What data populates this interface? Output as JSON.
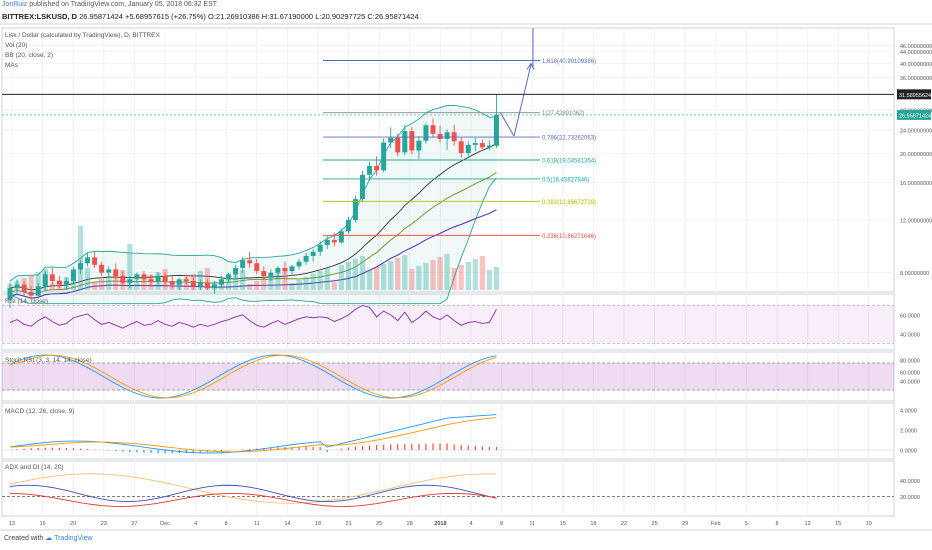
{
  "header": {
    "author": "JonRuiz",
    "published": "published on TradingView.com, January 05, 2018 06:32 EST",
    "symbol": "BITTREX:LSKUSD, D",
    "price": "26.95871424",
    "change": "+5.68957615 (+26.75%)",
    "o": "O:21.26910386",
    "h": "H:31.67190000",
    "l": "L:20.90297725",
    "c": "C:26.95871424"
  },
  "legend": {
    "title": "Lisk / Dollar (calculated by TradingView), D, BITTREX",
    "vol": "Vol (20)",
    "bb": "BB (20, close, 2)",
    "mas": "MAs",
    "rsi": "RSI (14, close)",
    "stoch": "Stoch RSI (3, 3, 14, 14, close)",
    "macd": "MACD (12, 26, close, 9)",
    "adx": "ADX and DI (14, 20)"
  },
  "footer": {
    "created": "Created with",
    "brand": "TradingView"
  },
  "colors": {
    "up": "#26a69a",
    "down": "#ef5350",
    "bb": "#26a69a",
    "fib_blue": "#5b6bc0",
    "rsi": "#8e24aa",
    "macd": "#2196f3",
    "signal": "#ff9800"
  },
  "chart_data": {
    "type": "candlestick",
    "main": {
      "price_axis_labels": [
        "46.00000000",
        "44.00000000",
        "40.00000000",
        "36.00000000",
        "28.00000000",
        "24.00000000",
        "20.00000000",
        "16.00000000",
        "12.00000000",
        "8.00000000"
      ],
      "price_axis_values": [
        46,
        44,
        40,
        36,
        28,
        24,
        20,
        16,
        12,
        8
      ],
      "scale": "log",
      "current_price_label": "26.95871424",
      "marked_price_label": "31.58955624",
      "marked_price": 31.59,
      "fib_levels": [
        {
          "label": "1.618(40.99109386)",
          "value": 40.99,
          "color": "#5b6bc0"
        },
        {
          "label": "1(27.42891062)",
          "value": 27.43,
          "color": "#888888"
        },
        {
          "label": "0.786(22.73262063)",
          "value": 22.73,
          "color": "#5b6bc0"
        },
        {
          "label": "0.618(19.04581354)",
          "value": 19.05,
          "color": "#26a69a"
        },
        {
          "label": "0.5(16.45627846)",
          "value": 16.46,
          "color": "#26a69a"
        },
        {
          "label": "0.382(13.85672739)",
          "value": 13.86,
          "color": "#b8b800"
        },
        {
          "label": "0.236(10.66271646)",
          "value": 10.66,
          "color": "#ef5350"
        }
      ],
      "candles": [
        {
          "o": 6.5,
          "h": 7.4,
          "l": 6.1,
          "c": 7.1
        },
        {
          "o": 7.1,
          "h": 7.6,
          "l": 6.8,
          "c": 7.3
        },
        {
          "o": 7.3,
          "h": 7.5,
          "l": 6.7,
          "c": 6.9
        },
        {
          "o": 6.9,
          "h": 7.2,
          "l": 6.5,
          "c": 6.7
        },
        {
          "o": 6.7,
          "h": 7.4,
          "l": 6.6,
          "c": 7.2
        },
        {
          "o": 7.2,
          "h": 8.1,
          "l": 7.0,
          "c": 7.9
        },
        {
          "o": 7.9,
          "h": 8.3,
          "l": 7.3,
          "c": 7.5
        },
        {
          "o": 7.5,
          "h": 7.8,
          "l": 7.1,
          "c": 7.3
        },
        {
          "o": 7.3,
          "h": 7.7,
          "l": 7.0,
          "c": 7.5
        },
        {
          "o": 7.5,
          "h": 8.4,
          "l": 7.4,
          "c": 8.2
        },
        {
          "o": 8.2,
          "h": 8.8,
          "l": 7.9,
          "c": 8.6
        },
        {
          "o": 8.6,
          "h": 9.3,
          "l": 8.4,
          "c": 9.0
        },
        {
          "o": 9.0,
          "h": 9.4,
          "l": 8.3,
          "c": 8.5
        },
        {
          "o": 8.5,
          "h": 8.7,
          "l": 7.8,
          "c": 8.0
        },
        {
          "o": 8.0,
          "h": 8.4,
          "l": 7.7,
          "c": 8.2
        },
        {
          "o": 8.2,
          "h": 8.6,
          "l": 7.6,
          "c": 7.8
        },
        {
          "o": 7.8,
          "h": 8.1,
          "l": 7.2,
          "c": 7.4
        },
        {
          "o": 7.4,
          "h": 7.8,
          "l": 7.1,
          "c": 7.6
        },
        {
          "o": 7.6,
          "h": 8.0,
          "l": 7.4,
          "c": 7.9
        },
        {
          "o": 7.9,
          "h": 8.1,
          "l": 7.4,
          "c": 7.6
        },
        {
          "o": 7.6,
          "h": 7.9,
          "l": 7.2,
          "c": 7.5
        },
        {
          "o": 7.5,
          "h": 8.0,
          "l": 7.3,
          "c": 7.8
        },
        {
          "o": 7.8,
          "h": 8.0,
          "l": 7.3,
          "c": 7.5
        },
        {
          "o": 7.5,
          "h": 7.8,
          "l": 7.1,
          "c": 7.3
        },
        {
          "o": 7.3,
          "h": 7.7,
          "l": 7.0,
          "c": 7.6
        },
        {
          "o": 7.6,
          "h": 7.9,
          "l": 7.3,
          "c": 7.5
        },
        {
          "o": 7.5,
          "h": 7.7,
          "l": 7.0,
          "c": 7.2
        },
        {
          "o": 7.2,
          "h": 7.6,
          "l": 7.0,
          "c": 7.4
        },
        {
          "o": 7.4,
          "h": 7.6,
          "l": 7.0,
          "c": 7.1
        },
        {
          "o": 7.1,
          "h": 7.5,
          "l": 6.8,
          "c": 7.3
        },
        {
          "o": 7.3,
          "h": 7.8,
          "l": 7.1,
          "c": 7.6
        },
        {
          "o": 7.6,
          "h": 8.0,
          "l": 7.4,
          "c": 7.9
        },
        {
          "o": 7.9,
          "h": 8.5,
          "l": 7.7,
          "c": 8.3
        },
        {
          "o": 8.3,
          "h": 9.0,
          "l": 8.0,
          "c": 8.8
        },
        {
          "o": 8.8,
          "h": 9.4,
          "l": 8.3,
          "c": 8.6
        },
        {
          "o": 8.6,
          "h": 8.9,
          "l": 7.9,
          "c": 8.1
        },
        {
          "o": 8.1,
          "h": 8.4,
          "l": 7.6,
          "c": 7.8
        },
        {
          "o": 7.8,
          "h": 8.2,
          "l": 7.5,
          "c": 8.0
        },
        {
          "o": 8.0,
          "h": 8.4,
          "l": 7.7,
          "c": 8.3
        },
        {
          "o": 8.3,
          "h": 8.7,
          "l": 7.9,
          "c": 8.1
        },
        {
          "o": 8.1,
          "h": 8.5,
          "l": 7.8,
          "c": 8.4
        },
        {
          "o": 8.4,
          "h": 8.9,
          "l": 8.2,
          "c": 8.7
        },
        {
          "o": 8.7,
          "h": 9.3,
          "l": 8.5,
          "c": 9.1
        },
        {
          "o": 9.1,
          "h": 9.6,
          "l": 8.7,
          "c": 9.4
        },
        {
          "o": 9.4,
          "h": 10.2,
          "l": 9.1,
          "c": 9.9
        },
        {
          "o": 9.9,
          "h": 10.6,
          "l": 9.6,
          "c": 10.3
        },
        {
          "o": 10.3,
          "h": 10.9,
          "l": 9.8,
          "c": 10.1
        },
        {
          "o": 10.1,
          "h": 11.2,
          "l": 10.0,
          "c": 11.0
        },
        {
          "o": 11.0,
          "h": 12.3,
          "l": 10.8,
          "c": 12.0
        },
        {
          "o": 12.0,
          "h": 14.5,
          "l": 11.8,
          "c": 14.1
        },
        {
          "o": 14.1,
          "h": 17.5,
          "l": 13.9,
          "c": 17.0
        },
        {
          "o": 17.0,
          "h": 18.8,
          "l": 16.2,
          "c": 18.2
        },
        {
          "o": 18.2,
          "h": 19.6,
          "l": 16.9,
          "c": 17.6
        },
        {
          "o": 17.6,
          "h": 22.5,
          "l": 17.3,
          "c": 21.8
        },
        {
          "o": 21.8,
          "h": 24.5,
          "l": 20.9,
          "c": 22.6
        },
        {
          "o": 22.6,
          "h": 23.3,
          "l": 19.6,
          "c": 20.2
        },
        {
          "o": 20.2,
          "h": 25.0,
          "l": 19.8,
          "c": 23.8
        },
        {
          "o": 23.8,
          "h": 24.6,
          "l": 19.9,
          "c": 20.5
        },
        {
          "o": 20.5,
          "h": 22.9,
          "l": 19.2,
          "c": 22.1
        },
        {
          "o": 22.1,
          "h": 25.4,
          "l": 21.6,
          "c": 24.9
        },
        {
          "o": 24.9,
          "h": 26.2,
          "l": 22.6,
          "c": 23.3
        },
        {
          "o": 23.3,
          "h": 24.8,
          "l": 21.8,
          "c": 22.4
        },
        {
          "o": 22.4,
          "h": 24.1,
          "l": 20.6,
          "c": 23.6
        },
        {
          "o": 23.6,
          "h": 25.0,
          "l": 21.3,
          "c": 22.0
        },
        {
          "o": 22.0,
          "h": 22.6,
          "l": 19.4,
          "c": 20.1
        },
        {
          "o": 20.1,
          "h": 22.0,
          "l": 19.6,
          "c": 21.4
        },
        {
          "o": 21.4,
          "h": 22.6,
          "l": 20.4,
          "c": 21.7
        },
        {
          "o": 21.7,
          "h": 22.3,
          "l": 20.7,
          "c": 21.0
        },
        {
          "o": 21.0,
          "h": 22.1,
          "l": 20.5,
          "c": 21.3
        },
        {
          "o": 21.27,
          "h": 31.67,
          "l": 20.9,
          "c": 26.96
        }
      ]
    },
    "indicators": {
      "rsi": {
        "axis_labels": [
          "60.0000",
          "40.0000"
        ],
        "values": [
          52,
          55,
          50,
          48,
          54,
          58,
          53,
          49,
          51,
          57,
          59,
          61,
          55,
          50,
          52,
          49,
          46,
          50,
          53,
          49,
          50,
          54,
          50,
          48,
          52,
          50,
          47,
          50,
          48,
          50,
          53,
          55,
          58,
          60,
          54,
          49,
          47,
          51,
          54,
          50,
          53,
          56,
          58,
          57,
          58,
          57,
          53,
          56,
          60,
          66,
          70,
          68,
          58,
          64,
          60,
          54,
          63,
          52,
          57,
          64,
          58,
          55,
          60,
          54,
          49,
          52,
          53,
          51,
          52,
          66
        ]
      },
      "stoch": {
        "axis_labels": [
          "80.0000",
          "60.0000",
          "40.0000"
        ]
      },
      "macd": {
        "axis_labels": [
          "4.0000",
          "2.0000",
          "0.0000"
        ]
      },
      "adx": {
        "axis_labels": [
          "40.0000",
          "20.0000"
        ]
      }
    },
    "time_axis": [
      "13",
      "16",
      "20",
      "23",
      "27",
      "Dec",
      "4",
      "8",
      "11",
      "14",
      "18",
      "21",
      "25",
      "28",
      "2018",
      "4",
      "8",
      "11",
      "15",
      "18",
      "22",
      "25",
      "29",
      "Feb",
      "5",
      "8",
      "12",
      "15",
      "19"
    ]
  }
}
